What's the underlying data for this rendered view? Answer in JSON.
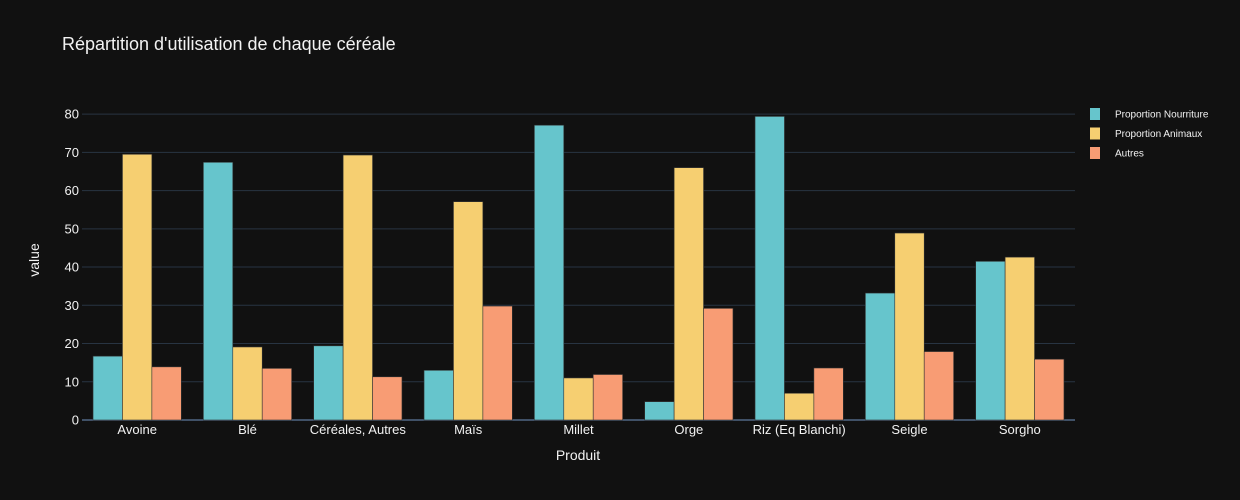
{
  "chart_data": {
    "type": "bar",
    "title": "Répartition d'utilisation de chaque céréale",
    "xlabel": "Produit",
    "ylabel": "value",
    "categories": [
      "Avoine",
      "Blé",
      "Céréales, Autres",
      "Maïs",
      "Millet",
      "Orge",
      "Riz (Eq Blanchi)",
      "Seigle",
      "Sorgho"
    ],
    "series": [
      {
        "name": "Proportion Nourriture",
        "color": "#66c5cc",
        "values": [
          16.7,
          67.4,
          19.4,
          13.0,
          77.1,
          4.8,
          79.4,
          33.2,
          41.5
        ]
      },
      {
        "name": "Proportion Animaux",
        "color": "#f6cf71",
        "values": [
          69.5,
          19.1,
          69.3,
          57.1,
          11.0,
          66.0,
          7.0,
          48.9,
          42.6
        ]
      },
      {
        "name": "Autres",
        "color": "#f89c74",
        "values": [
          13.9,
          13.5,
          11.3,
          29.8,
          11.9,
          29.2,
          13.6,
          17.9,
          15.9
        ]
      }
    ],
    "ylim": [
      0,
      85
    ],
    "yticks": [
      0,
      10,
      20,
      30,
      40,
      50,
      60,
      70,
      80
    ],
    "grid": true,
    "legend_position": "top-right"
  }
}
